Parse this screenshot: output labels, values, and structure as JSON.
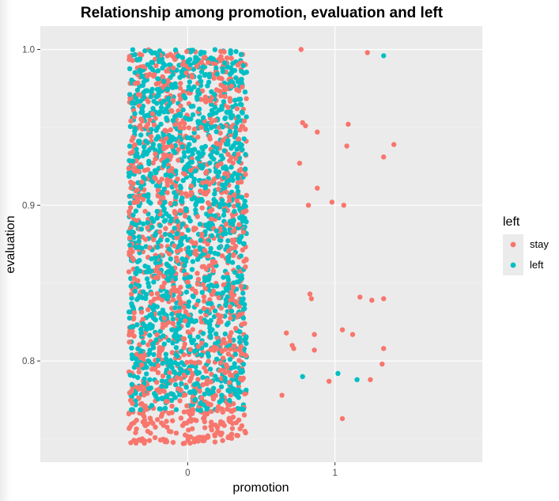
{
  "chart_data": {
    "type": "scatter",
    "title": "Relationship among promotion, evaluation and left",
    "xlabel": "promotion",
    "ylabel": "evaluation",
    "x_ticks": [
      0,
      1
    ],
    "y_ticks": [
      0.8,
      0.9,
      1.0
    ],
    "y_tick_labels": [
      "0.8",
      "0.9",
      "1.0"
    ],
    "x_tick_labels": [
      "0",
      "1"
    ],
    "xlim": [
      -1.0,
      2.0
    ],
    "ylim": [
      0.735,
      1.015
    ],
    "grid": true,
    "jitter": true,
    "legend": {
      "title": "left",
      "placement": "right",
      "entries": [
        {
          "label": "stay",
          "color": "#F8766D"
        },
        {
          "label": "left",
          "color": "#00BFC4"
        }
      ]
    },
    "series": [
      {
        "name": "stay",
        "color": "#F8766D",
        "x": [
          0.77,
          1.22,
          0.78,
          0.8,
          0.88,
          1.09,
          1.08,
          1.4,
          1.33,
          0.76,
          0.88,
          0.98,
          0.82,
          1.06,
          0.83,
          0.84,
          1.17,
          1.25,
          1.33,
          0.67,
          0.71,
          0.72,
          0.86,
          1.05,
          1.12,
          1.33,
          0.86,
          0.96,
          1.24,
          1.32,
          0.64,
          1.05
        ],
        "y": [
          1.0,
          0.998,
          0.953,
          0.951,
          0.947,
          0.952,
          0.938,
          0.939,
          0.931,
          0.927,
          0.911,
          0.902,
          0.9,
          0.9,
          0.843,
          0.84,
          0.841,
          0.839,
          0.84,
          0.818,
          0.81,
          0.808,
          0.817,
          0.82,
          0.817,
          0.808,
          0.807,
          0.787,
          0.788,
          0.798,
          0.778,
          0.763
        ]
      },
      {
        "name": "left",
        "color": "#00BFC4",
        "x": [
          1.33,
          0.78,
          1.02,
          1.15
        ],
        "y": [
          0.996,
          0.79,
          0.792,
          0.788
        ]
      }
    ],
    "dense_band": {
      "x_range": [
        -0.4,
        0.4
      ],
      "left": {
        "y_range": [
          0.768,
          1.0
        ],
        "count": 1400
      },
      "stay": {
        "y_range": [
          0.747,
          1.0
        ],
        "count": 1200
      }
    }
  }
}
